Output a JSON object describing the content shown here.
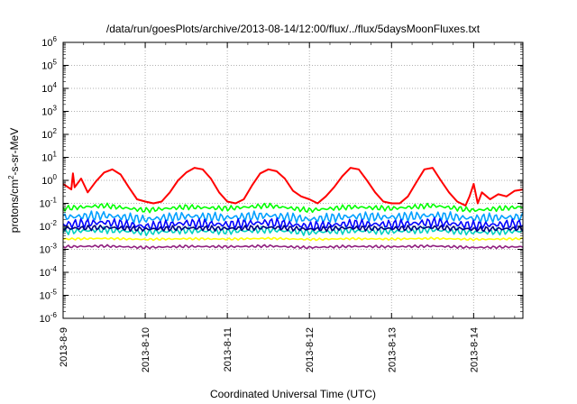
{
  "chart_data": {
    "type": "line",
    "title": "/data/run/goesPlots/archive/2013-08-14/12:00/flux/../flux/5daysMoonFluxes.txt",
    "xlabel": "Coordinated Universal Time (UTC)",
    "ylabel_prefix": "protons/cm",
    "ylabel_sup": "2",
    "ylabel_suffix": "-s-sr-MeV",
    "y_scale": "log",
    "ylim": [
      1e-06,
      1000000.0
    ],
    "xlim": [
      0,
      5.6
    ],
    "grid": true,
    "x_ticks": [
      {
        "value": 0,
        "label": "2013-8-9"
      },
      {
        "value": 1,
        "label": "2013-8-10"
      },
      {
        "value": 2,
        "label": "2013-8-11"
      },
      {
        "value": 3,
        "label": "2013-8-12"
      },
      {
        "value": 4,
        "label": "2013-8-13"
      },
      {
        "value": 5,
        "label": "2013-8-14"
      }
    ],
    "y_ticks": [
      {
        "value": 1e-06,
        "base": "10",
        "exp": "-6"
      },
      {
        "value": 1e-05,
        "base": "10",
        "exp": "-5"
      },
      {
        "value": 0.0001,
        "base": "10",
        "exp": "-4"
      },
      {
        "value": 0.001,
        "base": "10",
        "exp": "-3"
      },
      {
        "value": 0.01,
        "base": "10",
        "exp": "-2"
      },
      {
        "value": 0.1,
        "base": "10",
        "exp": "-1"
      },
      {
        "value": 1,
        "base": "10",
        "exp": "0"
      },
      {
        "value": 10,
        "base": "10",
        "exp": "1"
      },
      {
        "value": 100,
        "base": "10",
        "exp": "2"
      },
      {
        "value": 1000,
        "base": "10",
        "exp": "3"
      },
      {
        "value": 10000,
        "base": "10",
        "exp": "4"
      },
      {
        "value": 100000,
        "base": "10",
        "exp": "5"
      },
      {
        "value": 1000000,
        "base": "10",
        "exp": "6"
      }
    ],
    "series": [
      {
        "color": "#ff0000",
        "x": [
          0,
          0.1,
          0.12,
          0.14,
          0.22,
          0.3,
          0.4,
          0.5,
          0.6,
          0.7,
          0.8,
          0.9,
          1.0,
          1.1,
          1.2,
          1.3,
          1.4,
          1.5,
          1.6,
          1.7,
          1.8,
          1.9,
          2.0,
          2.1,
          2.2,
          2.3,
          2.4,
          2.5,
          2.6,
          2.7,
          2.8,
          2.9,
          3.0,
          3.1,
          3.2,
          3.3,
          3.4,
          3.5,
          3.6,
          3.7,
          3.8,
          3.9,
          4.0,
          4.1,
          4.2,
          4.3,
          4.4,
          4.5,
          4.6,
          4.7,
          4.8,
          4.9,
          4.95,
          5.0,
          5.05,
          5.1,
          5.2,
          5.3,
          5.4,
          5.5,
          5.6
        ],
        "y": [
          0.7,
          0.4,
          2.0,
          0.5,
          1.2,
          0.3,
          0.9,
          2.2,
          3.0,
          1.8,
          0.5,
          0.15,
          0.12,
          0.1,
          0.12,
          0.3,
          1.0,
          2.2,
          3.5,
          3.0,
          1.2,
          0.3,
          0.12,
          0.1,
          0.15,
          0.6,
          2.0,
          3.0,
          2.5,
          1.2,
          0.35,
          0.2,
          0.15,
          0.1,
          0.2,
          0.5,
          1.5,
          3.5,
          3.0,
          1.0,
          0.3,
          0.12,
          0.1,
          0.1,
          0.2,
          0.8,
          3.0,
          3.5,
          1.0,
          0.3,
          0.12,
          0.08,
          0.2,
          0.7,
          0.1,
          0.3,
          0.15,
          0.25,
          0.2,
          0.35,
          0.4
        ]
      },
      {
        "color": "#00ff00",
        "x": [
          0,
          0.5,
          1.0,
          1.5,
          2.0,
          2.5,
          3.0,
          3.5,
          4.0,
          4.5,
          5.0,
          5.6
        ],
        "y": [
          0.06,
          0.08,
          0.05,
          0.07,
          0.06,
          0.08,
          0.05,
          0.07,
          0.06,
          0.08,
          0.05,
          0.07
        ]
      },
      {
        "color": "#00a0ff",
        "x": [
          0,
          0.5,
          1.0,
          1.5,
          2.0,
          2.5,
          3.0,
          3.5,
          4.0,
          4.5,
          5.0,
          5.6
        ],
        "y": [
          0.025,
          0.03,
          0.02,
          0.028,
          0.024,
          0.03,
          0.02,
          0.027,
          0.025,
          0.03,
          0.022,
          0.026
        ]
      },
      {
        "color": "#0000ff",
        "x": [
          0,
          0.5,
          1.0,
          1.5,
          2.0,
          2.5,
          3.0,
          3.5,
          4.0,
          4.5,
          5.0,
          5.6
        ],
        "y": [
          0.012,
          0.015,
          0.01,
          0.014,
          0.012,
          0.015,
          0.01,
          0.013,
          0.012,
          0.015,
          0.011,
          0.013
        ]
      },
      {
        "color": "#00d0c0",
        "x": [
          0,
          0.5,
          1.0,
          1.5,
          2.0,
          2.5,
          3.0,
          3.5,
          4.0,
          4.5,
          5.0,
          5.6
        ],
        "y": [
          0.006,
          0.007,
          0.0055,
          0.0065,
          0.006,
          0.007,
          0.0055,
          0.0065,
          0.006,
          0.007,
          0.0055,
          0.0062
        ]
      },
      {
        "color": "#000080",
        "x": [
          0,
          0.5,
          1.0,
          1.5,
          2.0,
          2.5,
          3.0,
          3.5,
          4.0,
          4.5,
          5.0,
          5.6
        ],
        "y": [
          0.008,
          0.009,
          0.0075,
          0.0085,
          0.008,
          0.009,
          0.0075,
          0.0085,
          0.008,
          0.009,
          0.0075,
          0.008
        ]
      },
      {
        "color": "#ffff00",
        "x": [
          0,
          0.5,
          1.0,
          1.5,
          2.0,
          2.5,
          3.0,
          3.5,
          4.0,
          4.5,
          5.0,
          5.6
        ],
        "y": [
          0.0028,
          0.003,
          0.0027,
          0.0029,
          0.0028,
          0.003,
          0.0027,
          0.0029,
          0.0028,
          0.003,
          0.0027,
          0.0029
        ]
      },
      {
        "color": "#902080",
        "x": [
          0,
          0.5,
          1.0,
          1.5,
          2.0,
          2.5,
          3.0,
          3.5,
          4.0,
          4.5,
          5.0,
          5.6
        ],
        "y": [
          0.0013,
          0.0014,
          0.0012,
          0.00135,
          0.0013,
          0.0014,
          0.0012,
          0.00135,
          0.0013,
          0.0014,
          0.0012,
          0.0013
        ]
      }
    ]
  }
}
